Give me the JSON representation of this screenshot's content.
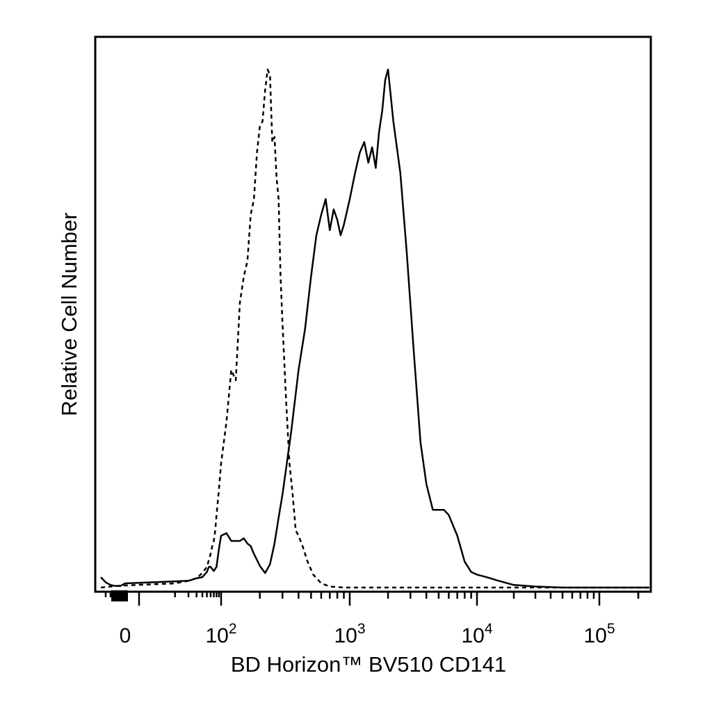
{
  "chart_data": {
    "type": "line",
    "title": "",
    "xlabel": "BD Horizon™ BV510 CD141",
    "ylabel": "Relative Cell Number",
    "x_scale": "biexponential",
    "xlim": [
      -50,
      250000
    ],
    "ylim": [
      0,
      1
    ],
    "grid": false,
    "legend": "none",
    "x_tick_labels": [
      {
        "value": 0,
        "base": "0",
        "exp": ""
      },
      {
        "value": 100,
        "base": "10",
        "exp": "2"
      },
      {
        "value": 1000,
        "base": "10",
        "exp": "3"
      },
      {
        "value": 10000,
        "base": "10",
        "exp": "4"
      },
      {
        "value": 100000,
        "base": "10",
        "exp": "5"
      }
    ],
    "series": [
      {
        "style": "dashed",
        "color": "#000000",
        "x": [
          -50,
          -20,
          0,
          10,
          20,
          30,
          40,
          50,
          60,
          65,
          70,
          75,
          80,
          90,
          100,
          110,
          120,
          130,
          140,
          150,
          160,
          170,
          180,
          190,
          200,
          210,
          220,
          230,
          240,
          250,
          260,
          270,
          280,
          290,
          300,
          320,
          340,
          360,
          380,
          400,
          430,
          470,
          520,
          600,
          700,
          900,
          1200,
          2000,
          5000,
          20000,
          250000
        ],
        "y": [
          0.0,
          0.003,
          0.004,
          0.008,
          0.013,
          0.018,
          0.028,
          0.04,
          0.065,
          0.08,
          0.09,
          0.11,
          0.14,
          0.19,
          0.24,
          0.32,
          0.42,
          0.4,
          0.55,
          0.6,
          0.63,
          0.72,
          0.75,
          0.84,
          0.89,
          0.9,
          0.96,
          1.0,
          0.99,
          0.86,
          0.87,
          0.79,
          0.75,
          0.6,
          0.51,
          0.36,
          0.24,
          0.18,
          0.11,
          0.1,
          0.08,
          0.05,
          0.025,
          0.008,
          0.002,
          0.0,
          0.0,
          0.0,
          0.0,
          0.0,
          0.0
        ]
      },
      {
        "style": "solid",
        "color": "#000000",
        "x": [
          -50,
          -45,
          -40,
          -30,
          -20,
          -10,
          0,
          10,
          20,
          30,
          40,
          50,
          55,
          60,
          70,
          80,
          90,
          100,
          110,
          120,
          130,
          140,
          150,
          160,
          170,
          180,
          200,
          220,
          240,
          260,
          280,
          300,
          320,
          350,
          400,
          450,
          500,
          550,
          600,
          650,
          700,
          750,
          800,
          850,
          900,
          1000,
          1100,
          1200,
          1300,
          1400,
          1500,
          1600,
          1700,
          1800,
          1900,
          2000,
          2200,
          2500,
          2800,
          3200,
          3600,
          4000,
          4500,
          5000,
          5500,
          6000,
          7000,
          8000,
          9000,
          10000,
          12000,
          15000,
          20000,
          30000,
          50000,
          100000,
          250000
        ],
        "y": [
          0.02,
          0.015,
          0.01,
          0.005,
          0.003,
          0.003,
          0.008,
          0.012,
          0.013,
          0.018,
          0.02,
          0.03,
          0.04,
          0.04,
          0.032,
          0.04,
          0.075,
          0.1,
          0.105,
          0.09,
          0.09,
          0.09,
          0.095,
          0.085,
          0.08,
          0.065,
          0.042,
          0.028,
          0.045,
          0.085,
          0.135,
          0.18,
          0.23,
          0.3,
          0.42,
          0.5,
          0.6,
          0.68,
          0.72,
          0.75,
          0.69,
          0.73,
          0.71,
          0.68,
          0.7,
          0.75,
          0.8,
          0.84,
          0.86,
          0.82,
          0.85,
          0.81,
          0.88,
          0.92,
          0.98,
          1.0,
          0.9,
          0.8,
          0.65,
          0.45,
          0.28,
          0.2,
          0.15,
          0.15,
          0.15,
          0.14,
          0.1,
          0.05,
          0.03,
          0.025,
          0.02,
          0.013,
          0.005,
          0.002,
          0.0,
          0.0,
          0.0
        ]
      }
    ]
  }
}
